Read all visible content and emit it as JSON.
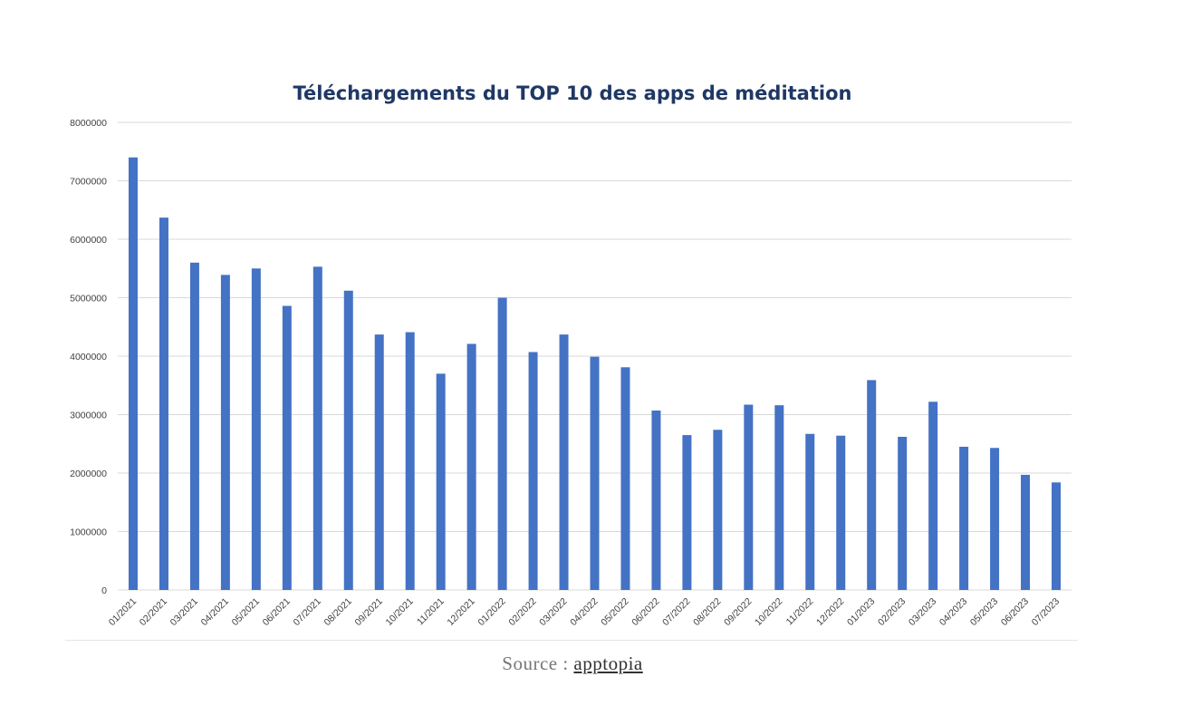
{
  "chart_data": {
    "type": "bar",
    "title": "Téléchargements du TOP 10 des apps de méditation",
    "xlabel": "",
    "ylabel": "",
    "ylim": [
      0,
      8000000
    ],
    "yticks": [
      "0",
      "1000000",
      "2000000",
      "3000000",
      "4000000",
      "5000000",
      "6000000",
      "7000000",
      "8000000"
    ],
    "grid": true,
    "bar_color": "#4472c4",
    "categories": [
      "01/2021",
      "02/2021",
      "03/2021",
      "04/2021",
      "05/2021",
      "06/2021",
      "07/2021",
      "08/2021",
      "09/2021",
      "10/2021",
      "11/2021",
      "12/2021",
      "01/2022",
      "02/2022",
      "03/2022",
      "04/2022",
      "05/2022",
      "06/2022",
      "07/2022",
      "08/2022",
      "09/2022",
      "10/2022",
      "11/2022",
      "12/2022",
      "01/2023",
      "02/2023",
      "03/2023",
      "04/2023",
      "05/2023",
      "06/2023",
      "07/2023"
    ],
    "values": [
      7400000,
      6370000,
      5600000,
      5390000,
      5500000,
      4860000,
      5530000,
      5120000,
      4370000,
      4410000,
      3700000,
      4210000,
      5000000,
      4070000,
      4370000,
      3990000,
      3810000,
      3070000,
      2650000,
      2740000,
      3170000,
      3160000,
      2670000,
      2640000,
      3590000,
      2620000,
      3220000,
      2450000,
      2430000,
      1970000,
      1840000
    ]
  },
  "source": {
    "label": "Source : ",
    "link": "apptopia"
  }
}
